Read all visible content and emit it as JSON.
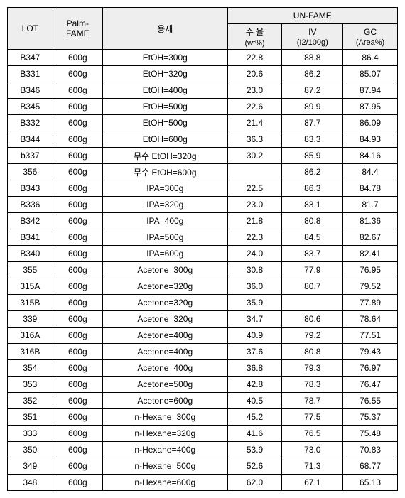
{
  "header": {
    "lot": "LOT",
    "palm": "Palm-FAME",
    "solvent": "용제",
    "unfame": "UN-FAME",
    "yield": "수 율",
    "yield_unit": "(wt%)",
    "iv": "IV",
    "iv_unit": "(I2/100g)",
    "gc": "GC",
    "gc_unit": "(Area%)"
  },
  "rows": [
    {
      "lot": "B347",
      "palm": "600g",
      "solvent": "EtOH=300g",
      "yield": "22.8",
      "iv": "88.8",
      "gc": "86.4"
    },
    {
      "lot": "B331",
      "palm": "600g",
      "solvent": "EtOH=320g",
      "yield": "20.6",
      "iv": "86.2",
      "gc": "85.07"
    },
    {
      "lot": "B346",
      "palm": "600g",
      "solvent": "EtOH=400g",
      "yield": "23.0",
      "iv": "87.2",
      "gc": "87.94"
    },
    {
      "lot": "B345",
      "palm": "600g",
      "solvent": "EtOH=500g",
      "yield": "22.6",
      "iv": "89.9",
      "gc": "87.95"
    },
    {
      "lot": "B332",
      "palm": "600g",
      "solvent": "EtOH=500g",
      "yield": "21.4",
      "iv": "87.7",
      "gc": "86.09"
    },
    {
      "lot": "B344",
      "palm": "600g",
      "solvent": "EtOH=600g",
      "yield": "36.3",
      "iv": "83.3",
      "gc": "84.93"
    },
    {
      "lot": "b337",
      "palm": "600g",
      "solvent": "무수 EtOH=320g",
      "yield": "30.2",
      "iv": "85.9",
      "gc": "84.16"
    },
    {
      "lot": "356",
      "palm": "600g",
      "solvent": "무수 EtOH=600g",
      "yield": "",
      "iv": "86.2",
      "gc": "84.4"
    },
    {
      "lot": "B343",
      "palm": "600g",
      "solvent": "IPA=300g",
      "yield": "22.5",
      "iv": "86.3",
      "gc": "84.78"
    },
    {
      "lot": "B336",
      "palm": "600g",
      "solvent": "IPA=320g",
      "yield": "23.0",
      "iv": "83.1",
      "gc": "81.7"
    },
    {
      "lot": "B342",
      "palm": "600g",
      "solvent": "IPA=400g",
      "yield": "21.8",
      "iv": "80.8",
      "gc": "81.36"
    },
    {
      "lot": "B341",
      "palm": "600g",
      "solvent": "IPA=500g",
      "yield": "22.3",
      "iv": "84.5",
      "gc": "82.67"
    },
    {
      "lot": "B340",
      "palm": "600g",
      "solvent": "IPA=600g",
      "yield": "24.0",
      "iv": "83.7",
      "gc": "82.41"
    },
    {
      "lot": "355",
      "palm": "600g",
      "solvent": "Acetone=300g",
      "yield": "30.8",
      "iv": "77.9",
      "gc": "76.95"
    },
    {
      "lot": "315A",
      "palm": "600g",
      "solvent": "Acetone=320g",
      "yield": "36.0",
      "iv": "80.7",
      "gc": "79.52"
    },
    {
      "lot": "315B",
      "palm": "600g",
      "solvent": "Acetone=320g",
      "yield": "35.9",
      "iv": "",
      "gc": "77.89"
    },
    {
      "lot": "339",
      "palm": "600g",
      "solvent": "Acetone=320g",
      "yield": "34.7",
      "iv": "80.6",
      "gc": "78.64"
    },
    {
      "lot": "316A",
      "palm": "600g",
      "solvent": "Acetone=400g",
      "yield": "40.9",
      "iv": "79.2",
      "gc": "77.51"
    },
    {
      "lot": "316B",
      "palm": "600g",
      "solvent": "Acetone=400g",
      "yield": "37.6",
      "iv": "80.8",
      "gc": "79.43"
    },
    {
      "lot": "354",
      "palm": "600g",
      "solvent": "Acetone=400g",
      "yield": "36.8",
      "iv": "79.3",
      "gc": "76.97"
    },
    {
      "lot": "353",
      "palm": "600g",
      "solvent": "Acetone=500g",
      "yield": "42.8",
      "iv": "78.3",
      "gc": "76.47"
    },
    {
      "lot": "352",
      "palm": "600g",
      "solvent": "Acetone=600g",
      "yield": "40.5",
      "iv": "78.7",
      "gc": "76.55"
    },
    {
      "lot": "351",
      "palm": "600g",
      "solvent": "n-Hexane=300g",
      "yield": "45.2",
      "iv": "77.5",
      "gc": "75.37"
    },
    {
      "lot": "333",
      "palm": "600g",
      "solvent": "n-Hexane=320g",
      "yield": "41.6",
      "iv": "76.5",
      "gc": "75.48"
    },
    {
      "lot": "350",
      "palm": "600g",
      "solvent": "n-Hexane=400g",
      "yield": "53.9",
      "iv": "73.0",
      "gc": "70.83"
    },
    {
      "lot": "349",
      "palm": "600g",
      "solvent": "n-Hexane=500g",
      "yield": "52.6",
      "iv": "71.3",
      "gc": "68.77"
    },
    {
      "lot": "348",
      "palm": "600g",
      "solvent": "n-Hexane=600g",
      "yield": "62.0",
      "iv": "67.1",
      "gc": "65.13"
    }
  ]
}
